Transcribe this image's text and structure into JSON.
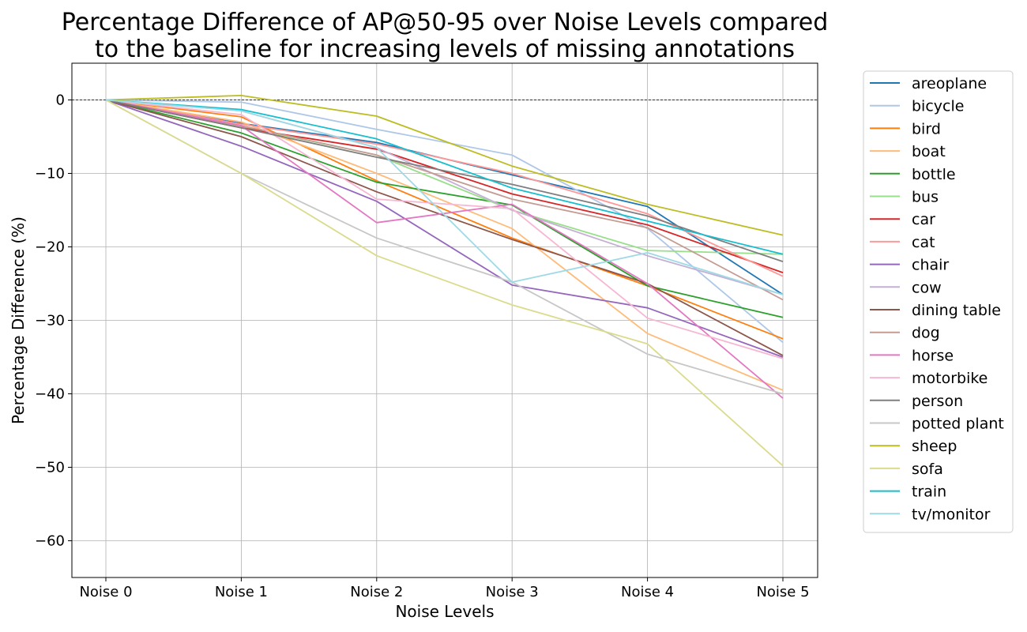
{
  "chart_data": {
    "type": "line",
    "title_lines": [
      "Percentage Difference of AP@50-95 over Noise Levels compared",
      "to the baseline for increasing levels of missing annotations"
    ],
    "xlabel": "Noise Levels",
    "ylabel": "Percentage Difference (%)",
    "categories": [
      "Noise 0",
      "Noise 1",
      "Noise 2",
      "Noise 3",
      "Noise 4",
      "Noise 5"
    ],
    "ylim": [
      -65,
      5
    ],
    "yticks": [
      0,
      -10,
      -20,
      -30,
      -40,
      -50,
      -60
    ],
    "ytick_labels": [
      "0",
      "−10",
      "−20",
      "−30",
      "−40",
      "−50",
      "−60"
    ],
    "grid": true,
    "reference_line": 0,
    "legend_position": "outside-right",
    "series": [
      {
        "name": "areoplane",
        "color": "#1f77b4",
        "values": [
          0,
          -3.2,
          -5.8,
          -10.2,
          -14.5,
          -26.5
        ]
      },
      {
        "name": "bicycle",
        "color": "#aec7e8",
        "values": [
          0,
          -0.3,
          -4.0,
          -7.5,
          -17.5,
          -33.0
        ]
      },
      {
        "name": "bird",
        "color": "#ff7f0e",
        "values": [
          0,
          -2.3,
          -11.0,
          -18.8,
          -25.3,
          -32.5
        ]
      },
      {
        "name": "boat",
        "color": "#ffbb78",
        "values": [
          0,
          -3.0,
          -10.0,
          -17.5,
          -31.8,
          -39.5
        ]
      },
      {
        "name": "bottle",
        "color": "#2ca02c",
        "values": [
          0,
          -4.5,
          -11.2,
          -14.3,
          -25.3,
          -29.6
        ]
      },
      {
        "name": "bus",
        "color": "#98df8a",
        "values": [
          0,
          -3.6,
          -7.5,
          -15.0,
          -20.5,
          -21.0
        ]
      },
      {
        "name": "car",
        "color": "#d62728",
        "values": [
          0,
          -3.8,
          -6.7,
          -12.8,
          -17.0,
          -23.5
        ]
      },
      {
        "name": "cat",
        "color": "#ff9896",
        "values": [
          0,
          -3.3,
          -6.0,
          -10.0,
          -15.5,
          -24.0
        ]
      },
      {
        "name": "chair",
        "color": "#9467bd",
        "values": [
          0,
          -6.3,
          -13.8,
          -25.2,
          -28.3,
          -35.0
        ]
      },
      {
        "name": "cow",
        "color": "#c5b0d5",
        "values": [
          0,
          -1.5,
          -6.5,
          -15.0,
          -21.2,
          -26.5
        ]
      },
      {
        "name": "dining table",
        "color": "#8c564b",
        "values": [
          0,
          -5.0,
          -12.5,
          -19.0,
          -25.0,
          -34.8
        ]
      },
      {
        "name": "dog",
        "color": "#c49c94",
        "values": [
          0,
          -3.5,
          -7.5,
          -13.5,
          -17.4,
          -27.2
        ]
      },
      {
        "name": "horse",
        "color": "#e377c2",
        "values": [
          0,
          -3.5,
          -16.7,
          -14.2,
          -25.0,
          -40.6
        ]
      },
      {
        "name": "motorbike",
        "color": "#f7b6d2",
        "values": [
          0,
          -2.0,
          -13.5,
          -14.8,
          -29.7,
          -35.2
        ]
      },
      {
        "name": "person",
        "color": "#7f7f7f",
        "values": [
          0,
          -3.8,
          -7.8,
          -11.5,
          -15.8,
          -22.0
        ]
      },
      {
        "name": "potted plant",
        "color": "#c7c7c7",
        "values": [
          0,
          -10.0,
          -18.8,
          -24.8,
          -34.6,
          -40.0
        ]
      },
      {
        "name": "sheep",
        "color": "#bcbd22",
        "values": [
          0,
          0.6,
          -2.2,
          -9.0,
          -14.2,
          -18.4
        ]
      },
      {
        "name": "sofa",
        "color": "#dbdb8d",
        "values": [
          0,
          -10.0,
          -21.2,
          -27.9,
          -33.2,
          -49.8
        ]
      },
      {
        "name": "train",
        "color": "#17becf",
        "values": [
          0,
          -1.3,
          -5.3,
          -12.0,
          -16.5,
          -21.0
        ]
      },
      {
        "name": "tv/monitor",
        "color": "#9edae5",
        "values": [
          0,
          -1.5,
          -6.5,
          -24.8,
          -20.8,
          -26.5
        ]
      }
    ]
  }
}
